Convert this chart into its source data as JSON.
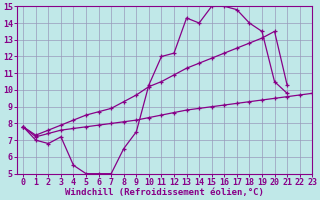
{
  "line1_x": [
    0,
    1,
    2,
    3,
    4,
    5,
    6,
    7,
    8,
    9,
    10,
    11,
    12,
    13,
    14,
    15,
    16,
    17,
    18,
    19,
    20,
    21
  ],
  "line1_y": [
    7.8,
    7.0,
    6.8,
    7.2,
    5.5,
    5.0,
    5.0,
    5.0,
    6.5,
    7.5,
    10.3,
    12.0,
    12.2,
    14.3,
    14.0,
    15.0,
    15.0,
    14.8,
    14.0,
    13.5,
    10.5,
    9.8
  ],
  "line2_x": [
    0,
    1,
    2,
    3,
    4,
    5,
    6,
    7,
    8,
    9,
    10,
    11,
    12,
    13,
    14,
    15,
    16,
    17,
    18,
    19,
    20,
    21,
    22,
    23
  ],
  "line2_y": [
    7.8,
    7.2,
    7.4,
    7.6,
    7.7,
    7.8,
    7.9,
    8.0,
    8.1,
    8.2,
    8.35,
    8.5,
    8.65,
    8.8,
    8.9,
    9.0,
    9.1,
    9.2,
    9.3,
    9.4,
    9.5,
    9.6,
    9.7,
    9.8
  ],
  "line3_x": [
    0,
    1,
    2,
    3,
    4,
    5,
    6,
    7,
    8,
    9,
    10,
    11,
    12,
    13,
    14,
    15,
    16,
    17,
    18,
    19,
    20,
    21
  ],
  "line3_y": [
    7.8,
    7.3,
    7.6,
    7.9,
    8.2,
    8.5,
    8.7,
    8.9,
    9.3,
    9.7,
    10.2,
    10.5,
    10.9,
    11.3,
    11.6,
    11.9,
    12.2,
    12.5,
    12.8,
    13.1,
    13.5,
    10.3
  ],
  "color": "#880088",
  "bg_color": "#c0e8e8",
  "grid_color": "#9999bb",
  "xlabel": "Windchill (Refroidissement éolien,°C)",
  "xlim": [
    -0.5,
    23
  ],
  "ylim": [
    5,
    15
  ],
  "xticks": [
    0,
    1,
    2,
    3,
    4,
    5,
    6,
    7,
    8,
    9,
    10,
    11,
    12,
    13,
    14,
    15,
    16,
    17,
    18,
    19,
    20,
    21,
    22,
    23
  ],
  "yticks": [
    5,
    6,
    7,
    8,
    9,
    10,
    11,
    12,
    13,
    14,
    15
  ],
  "font_size": 6,
  "xlabel_fontsize": 6.5
}
